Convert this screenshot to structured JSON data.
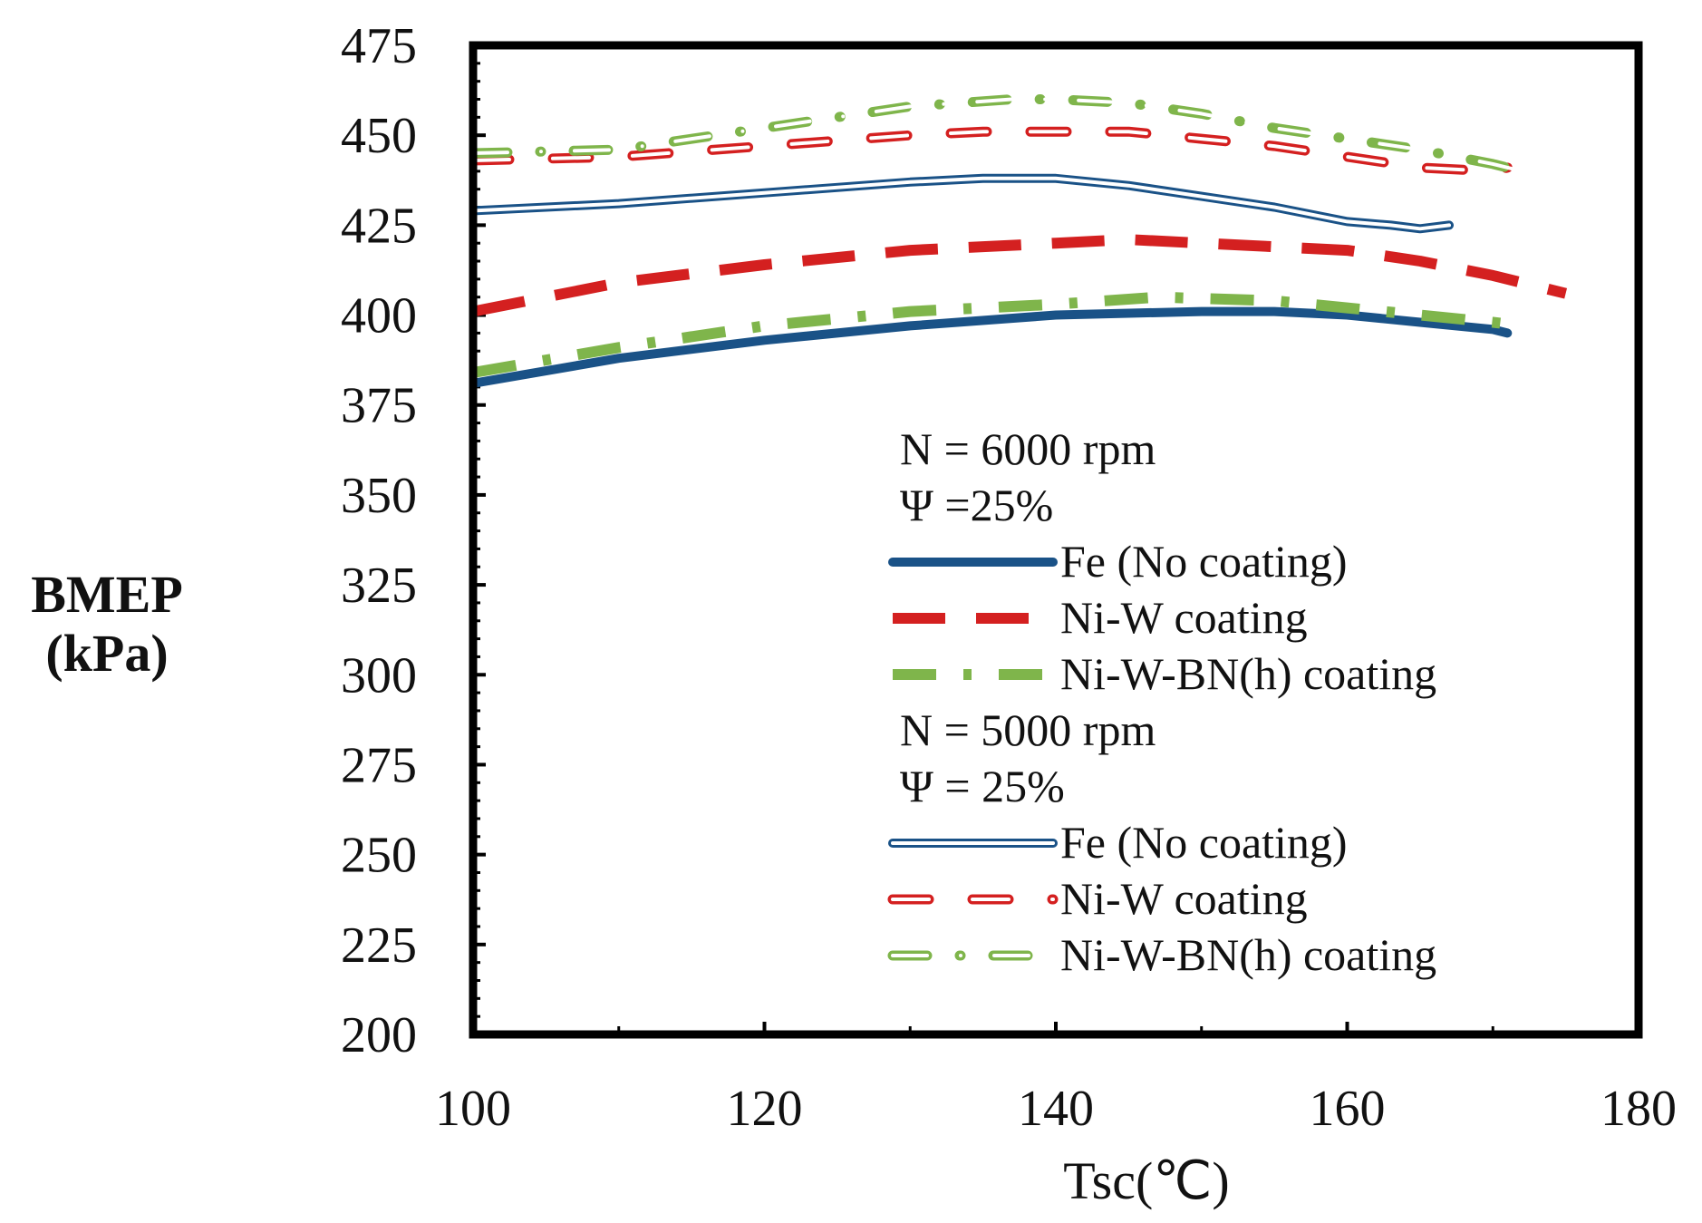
{
  "chart_data": {
    "type": "line",
    "title": "",
    "xlabel": "Tsc(℃)",
    "ylabel_lines": [
      "BMEP",
      "(kPa)"
    ],
    "xlim": [
      100,
      180
    ],
    "ylim": [
      200,
      475
    ],
    "x_ticks": [
      100,
      120,
      140,
      160,
      180
    ],
    "y_ticks": [
      200,
      225,
      250,
      275,
      300,
      325,
      350,
      375,
      400,
      425,
      450,
      475
    ],
    "grid": false,
    "legend_position": "bottom-right (inside plot)",
    "legend_groups": [
      {
        "header": [
          "N = 6000 rpm",
          "Ψ =25%"
        ],
        "series": [
          0,
          1,
          2
        ]
      },
      {
        "header": [
          "N = 5000 rpm",
          "Ψ = 25%"
        ],
        "series": [
          3,
          4,
          5
        ]
      }
    ],
    "series": [
      {
        "name": "Fe (No coating)",
        "group": "N = 6000 rpm",
        "color": "#1a5287",
        "style": "solid",
        "x": [
          100,
          110,
          120,
          130,
          140,
          150,
          155,
          160,
          165,
          170,
          171
        ],
        "y": [
          381,
          388,
          393,
          397,
          400,
          401,
          401,
          400,
          398,
          396,
          395
        ]
      },
      {
        "name": "Ni-W coating",
        "group": "N = 6000 rpm",
        "color": "#d42020",
        "style": "dashed",
        "x": [
          100,
          110,
          120,
          130,
          140,
          145,
          150,
          155,
          160,
          165,
          170,
          175
        ],
        "y": [
          401,
          409,
          414,
          418,
          420,
          421,
          420,
          419,
          418,
          415,
          411,
          406
        ]
      },
      {
        "name": "Ni-W-BN(h) coating",
        "group": "N = 6000 rpm",
        "color": "#7fb54b",
        "style": "dashdot",
        "x": [
          100,
          110,
          120,
          130,
          140,
          147,
          155,
          160,
          165,
          170,
          172
        ],
        "y": [
          384,
          391,
          397,
          401,
          403,
          405,
          404,
          402,
          400,
          398,
          397
        ]
      },
      {
        "name": "Fe (No coating)",
        "group": "N = 5000 rpm",
        "color": "#1a5287",
        "style": "double",
        "x": [
          100,
          110,
          120,
          130,
          135,
          140,
          145,
          150,
          155,
          160,
          163,
          165,
          167
        ],
        "y": [
          429,
          431,
          434,
          437,
          438,
          438,
          436,
          433,
          430,
          426,
          425,
          424,
          425
        ]
      },
      {
        "name": "Ni-W coating",
        "group": "N = 5000 rpm",
        "color": "#d42020",
        "style": "dashed-double",
        "x": [
          100,
          110,
          120,
          130,
          135,
          140,
          145,
          150,
          155,
          160,
          165,
          170,
          171
        ],
        "y": [
          443,
          444,
          447,
          450,
          451,
          451,
          451,
          449,
          447,
          444,
          441,
          440,
          441
        ]
      },
      {
        "name": "Ni-W-BN(h) coating",
        "group": "N = 5000 rpm",
        "color": "#7fb54b",
        "style": "dashdot-double",
        "x": [
          100,
          110,
          120,
          130,
          137,
          140,
          145,
          150,
          155,
          160,
          165,
          170,
          172
        ],
        "y": [
          445,
          446,
          452,
          458,
          460,
          460,
          459,
          456,
          452,
          449,
          446,
          442,
          440
        ]
      }
    ]
  }
}
